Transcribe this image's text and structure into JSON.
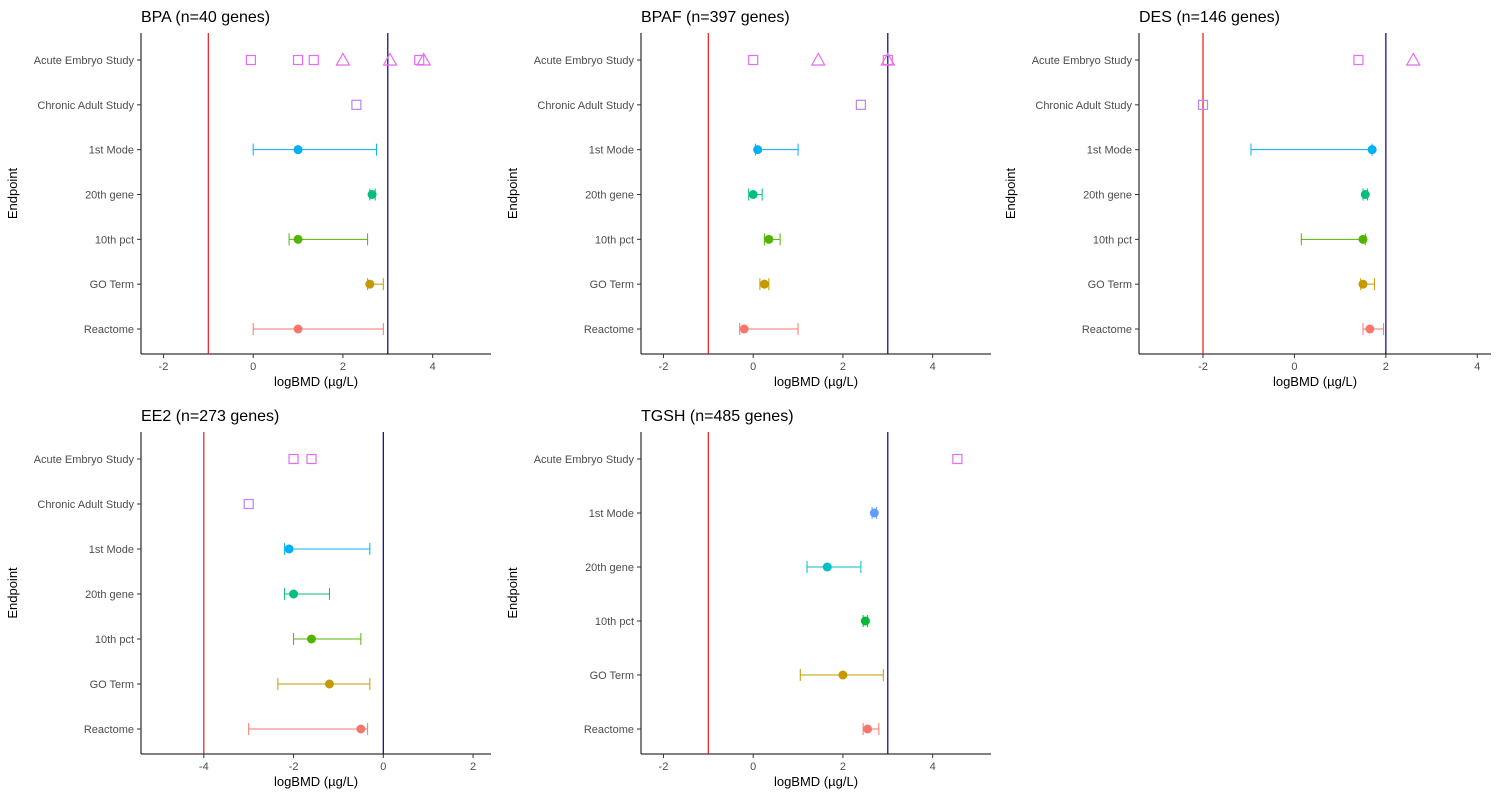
{
  "chart_data": [
    {
      "type": "scatter",
      "title": "BPA (n=40 genes)",
      "xlabel": "logBMD (µg/L)",
      "ylabel": "Endpoint",
      "xlim": [
        -2.5,
        5.3
      ],
      "xticks": [
        "-2",
        "0",
        "2",
        "4"
      ],
      "categories": [
        "Acute Embryo Study",
        "Chronic Adult Study",
        "1st Mode",
        "20th gene",
        "10th pct",
        "GO Term",
        "Reactome"
      ],
      "reference_lines": {
        "red": -1,
        "navy": 3
      },
      "apical_points": [
        {
          "category": "Acute Embryo Study",
          "x": -0.05,
          "shape": "square"
        },
        {
          "category": "Acute Embryo Study",
          "x": 1.0,
          "shape": "square"
        },
        {
          "category": "Acute Embryo Study",
          "x": 1.35,
          "shape": "square"
        },
        {
          "category": "Acute Embryo Study",
          "x": 2.0,
          "shape": "triangle"
        },
        {
          "category": "Acute Embryo Study",
          "x": 3.05,
          "shape": "triangle"
        },
        {
          "category": "Acute Embryo Study",
          "x": 3.7,
          "shape": "square"
        },
        {
          "category": "Acute Embryo Study",
          "x": 3.8,
          "shape": "triangle"
        },
        {
          "category": "Chronic Adult Study",
          "x": 2.3,
          "shape": "square"
        }
      ],
      "transcriptomic_points": [
        {
          "category": "1st Mode",
          "x": 1.0,
          "low": 0.0,
          "high": 2.75
        },
        {
          "category": "20th gene",
          "x": 2.65,
          "low": 2.6,
          "high": 2.72
        },
        {
          "category": "10th pct",
          "x": 1.0,
          "low": 0.8,
          "high": 2.55
        },
        {
          "category": "GO Term",
          "x": 2.6,
          "low": 2.55,
          "high": 2.9
        },
        {
          "category": "Reactome",
          "x": 1.0,
          "low": 0.0,
          "high": 2.9
        }
      ]
    },
    {
      "type": "scatter",
      "title": "BPAF (n=397 genes)",
      "xlabel": "logBMD (µg/L)",
      "ylabel": "Endpoint",
      "xlim": [
        -2.5,
        5.3
      ],
      "xticks": [
        "-2",
        "0",
        "2",
        "4"
      ],
      "categories": [
        "Acute Embryo Study",
        "Chronic Adult Study",
        "1st Mode",
        "20th gene",
        "10th pct",
        "GO Term",
        "Reactome"
      ],
      "reference_lines": {
        "red": -1,
        "navy": 3
      },
      "apical_points": [
        {
          "category": "Acute Embryo Study",
          "x": 0.0,
          "shape": "square"
        },
        {
          "category": "Acute Embryo Study",
          "x": 1.45,
          "shape": "triangle"
        },
        {
          "category": "Acute Embryo Study",
          "x": 3.0,
          "shape": "square"
        },
        {
          "category": "Acute Embryo Study",
          "x": 3.0,
          "shape": "triangle"
        },
        {
          "category": "Chronic Adult Study",
          "x": 2.4,
          "shape": "square"
        }
      ],
      "transcriptomic_points": [
        {
          "category": "1st Mode",
          "x": 0.1,
          "low": 0.05,
          "high": 1.0
        },
        {
          "category": "20th gene",
          "x": 0.0,
          "low": -0.1,
          "high": 0.2
        },
        {
          "category": "10th pct",
          "x": 0.35,
          "low": 0.25,
          "high": 0.6
        },
        {
          "category": "GO Term",
          "x": 0.25,
          "low": 0.15,
          "high": 0.35
        },
        {
          "category": "Reactome",
          "x": -0.2,
          "low": -0.3,
          "high": 1.0
        }
      ]
    },
    {
      "type": "scatter",
      "title": "DES (n=146 genes)",
      "xlabel": "logBMD (µg/L)",
      "ylabel": "Endpoint",
      "xlim": [
        -3.4,
        4.3
      ],
      "xticks": [
        "-2",
        "0",
        "2",
        "4"
      ],
      "categories": [
        "Acute Embryo Study",
        "Chronic Adult Study",
        "1st Mode",
        "20th gene",
        "10th pct",
        "GO Term",
        "Reactome"
      ],
      "reference_lines": {
        "red": -2,
        "navy": 2
      },
      "apical_points": [
        {
          "category": "Acute Embryo Study",
          "x": 1.4,
          "shape": "square"
        },
        {
          "category": "Acute Embryo Study",
          "x": 2.6,
          "shape": "triangle"
        },
        {
          "category": "Chronic Adult Study",
          "x": -2.0,
          "shape": "square"
        }
      ],
      "transcriptomic_points": [
        {
          "category": "1st Mode",
          "x": 1.7,
          "low": -0.95,
          "high": 1.7
        },
        {
          "category": "20th gene",
          "x": 1.55,
          "low": 1.5,
          "high": 1.6
        },
        {
          "category": "10th pct",
          "x": 1.5,
          "low": 0.15,
          "high": 1.55
        },
        {
          "category": "GO Term",
          "x": 1.5,
          "low": 1.45,
          "high": 1.75
        },
        {
          "category": "Reactome",
          "x": 1.65,
          "low": 1.5,
          "high": 1.95
        }
      ]
    },
    {
      "type": "scatter",
      "title": "EE2 (n=273 genes)",
      "xlabel": "logBMD (µg/L)",
      "ylabel": "Endpoint",
      "xlim": [
        -5.4,
        2.4
      ],
      "xticks": [
        "-4",
        "-2",
        "0",
        "2"
      ],
      "categories": [
        "Acute Embryo Study",
        "Chronic Adult Study",
        "1st Mode",
        "20th gene",
        "10th pct",
        "GO Term",
        "Reactome"
      ],
      "reference_lines": {
        "red": -4,
        "navy": 0
      },
      "apical_points": [
        {
          "category": "Acute Embryo Study",
          "x": -2.0,
          "shape": "square"
        },
        {
          "category": "Acute Embryo Study",
          "x": -1.6,
          "shape": "square"
        },
        {
          "category": "Chronic Adult Study",
          "x": -3.0,
          "shape": "square"
        }
      ],
      "transcriptomic_points": [
        {
          "category": "1st Mode",
          "x": -2.1,
          "low": -2.2,
          "high": -0.3
        },
        {
          "category": "20th gene",
          "x": -2.0,
          "low": -2.2,
          "high": -1.2
        },
        {
          "category": "10th pct",
          "x": -1.6,
          "low": -2.0,
          "high": -0.5
        },
        {
          "category": "GO Term",
          "x": -1.2,
          "low": -2.35,
          "high": -0.3
        },
        {
          "category": "Reactome",
          "x": -0.5,
          "low": -3.0,
          "high": -0.35
        }
      ]
    },
    {
      "type": "scatter",
      "title": "TGSH (n=485 genes)",
      "xlabel": "logBMD (µg/L)",
      "ylabel": "Endpoint",
      "xlim": [
        -2.5,
        5.3
      ],
      "xticks": [
        "-2",
        "0",
        "2",
        "4"
      ],
      "categories": [
        "Acute Embryo Study",
        "1st Mode",
        "20th gene",
        "10th pct",
        "GO Term",
        "Reactome"
      ],
      "reference_lines": {
        "red": -1,
        "navy": 3
      },
      "apical_points": [
        {
          "category": "Acute Embryo Study",
          "x": 4.55,
          "shape": "square"
        }
      ],
      "transcriptomic_points": [
        {
          "category": "1st Mode",
          "x": 2.7,
          "low": 2.65,
          "high": 2.75
        },
        {
          "category": "20th gene",
          "x": 1.65,
          "low": 1.2,
          "high": 2.4
        },
        {
          "category": "10th pct",
          "x": 2.5,
          "low": 2.45,
          "high": 2.55
        },
        {
          "category": "GO Term",
          "x": 2.0,
          "low": 1.05,
          "high": 2.9
        },
        {
          "category": "Reactome",
          "x": 2.55,
          "low": 2.45,
          "high": 2.8
        }
      ]
    }
  ],
  "colors": {
    "Acute Embryo Study": "#e76bf3",
    "Chronic Adult Study": "#b983ff",
    "1st Mode": "#00b0f6",
    "20th gene": "#00bf7d",
    "10th pct": "#53b400",
    "GO Term": "#c49a00",
    "Reactome": "#f8766d",
    "TGSH 1st Mode": "#619cff",
    "TGSH 20th gene": "#00bfc4",
    "TGSH 10th pct": "#00ba38",
    "red_line": "#e31a1c",
    "navy_line": "#000080"
  }
}
